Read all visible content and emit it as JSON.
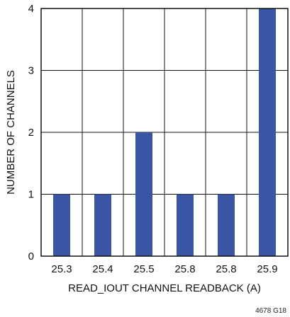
{
  "chart_data": {
    "type": "bar",
    "categories": [
      "25.3",
      "25.4",
      "25.5",
      "25.8",
      "25.8",
      "25.9"
    ],
    "values": [
      1,
      1,
      2,
      1,
      1,
      4
    ],
    "xlabel": "READ_IOUT CHANNEL READBACK (A)",
    "ylabel": "NUMBER OF CHANNELS",
    "ylim": [
      0,
      4
    ],
    "yticks": [
      "0",
      "1",
      "2",
      "3",
      "4"
    ],
    "grid": true,
    "bar_color": "#3a55a4",
    "figure_id": "4678 G18"
  }
}
